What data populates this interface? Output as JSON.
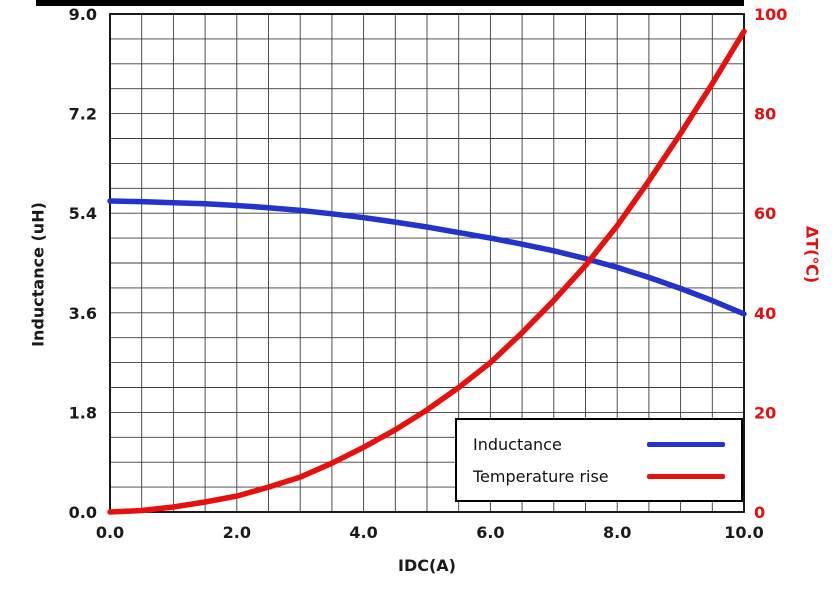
{
  "colors": {
    "grid": "#3c3c3c",
    "axis": "#000000",
    "tick_left_bottom": "#1a1a1a",
    "tick_right": "#e60e0e",
    "inductance_blue": "#2433cc",
    "temperature_red": "#e8100c"
  },
  "chart_data": {
    "type": "line",
    "title": "",
    "xlabel": "IDC(A)",
    "ylabel_left": "Inductance  (uH)",
    "ylabel_right": "ΔT(℃)",
    "xlim": [
      0,
      10
    ],
    "ylim_left": [
      0,
      9
    ],
    "ylim_right": [
      0,
      100
    ],
    "x_minor_step": 0.5,
    "x_major_step": 2.0,
    "y_left_minor_step": 0.45,
    "y_left_major_step": 1.8,
    "grid": true,
    "legend_position": "inside-bottom-right",
    "x_ticks": [
      "0.0",
      "2.0",
      "4.0",
      "6.0",
      "8.0",
      "10.0"
    ],
    "left_ticks": [
      "0.0",
      "1.8",
      "3.6",
      "5.4",
      "7.2",
      "9.0"
    ],
    "right_ticks": [
      "0",
      "20",
      "40",
      "60",
      "80",
      "100"
    ],
    "series": [
      {
        "name": "Inductance",
        "axis": "left",
        "color": "#2433cc",
        "x": [
          0,
          0.5,
          1,
          1.5,
          2,
          2.5,
          3,
          3.5,
          4,
          4.5,
          5,
          5.5,
          6,
          6.5,
          7,
          7.5,
          8,
          8.5,
          9,
          9.5,
          10
        ],
        "y": [
          5.62,
          5.61,
          5.59,
          5.57,
          5.54,
          5.5,
          5.45,
          5.39,
          5.32,
          5.24,
          5.15,
          5.05,
          4.95,
          4.84,
          4.72,
          4.58,
          4.42,
          4.24,
          4.04,
          3.82,
          3.58
        ]
      },
      {
        "name": "Temperature rise",
        "axis": "right",
        "color": "#e8100c",
        "x": [
          0,
          0.5,
          1,
          1.5,
          2,
          2.5,
          3,
          3.5,
          4,
          4.5,
          5,
          5.5,
          6,
          6.5,
          7,
          7.5,
          8,
          8.5,
          9,
          9.5,
          10
        ],
        "y": [
          0,
          0.3,
          1,
          2,
          3.2,
          5,
          7,
          9.8,
          13,
          16.5,
          20.5,
          25,
          30,
          36,
          42.5,
          49.5,
          57.5,
          66.5,
          76,
          86,
          96.5
        ]
      }
    ]
  }
}
